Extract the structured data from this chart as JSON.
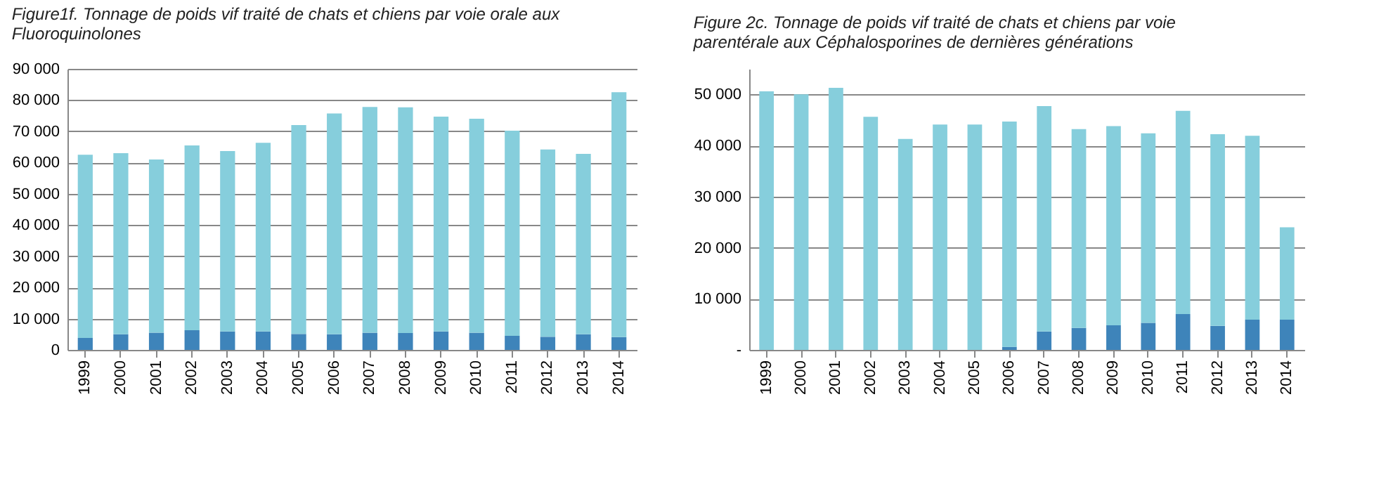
{
  "chart_data": [
    {
      "type": "bar",
      "stacked": true,
      "title": "Figure1f. Tonnage de poids vif traité de chats et chiens par voie orale aux Fluoroquinolones",
      "categories": [
        "1999",
        "2000",
        "2001",
        "2002",
        "2003",
        "2004",
        "2005",
        "2006",
        "2007",
        "2008",
        "2009",
        "2010",
        "2011",
        "2012",
        "2013",
        "2014"
      ],
      "series": [
        {
          "color": "#3e84ba",
          "values": [
            3800,
            5000,
            5500,
            6300,
            5900,
            5900,
            5100,
            5000,
            5500,
            5400,
            5900,
            5500,
            4500,
            4200,
            5000,
            4100
          ]
        },
        {
          "color": "#86cedc",
          "values": [
            58700,
            58000,
            55500,
            59200,
            57800,
            60400,
            66900,
            70700,
            72300,
            72300,
            68800,
            68500,
            65700,
            60000,
            57800,
            78400
          ]
        }
      ],
      "ylim": [
        0,
        90000
      ],
      "yticks": [
        0,
        {
          "value": 10000,
          "label": "10 000"
        },
        {
          "value": 20000,
          "label": "20 000"
        },
        {
          "value": 30000,
          "label": "30 000"
        },
        {
          "value": 40000,
          "label": "40 000"
        },
        {
          "value": 50000,
          "label": "50 000"
        },
        {
          "value": 60000,
          "label": "60 000"
        },
        {
          "value": 70000,
          "label": "70 000"
        },
        {
          "value": 80000,
          "label": "80 000"
        },
        {
          "value": 90000,
          "label": "90 000"
        }
      ],
      "grid": "y",
      "legend": false
    },
    {
      "type": "bar",
      "stacked": true,
      "title": "Figure 2c.  Tonnage de poids vif traité de chats et chiens par voie parentérale aux Céphalosporines de dernières générations",
      "categories": [
        "1999",
        "2000",
        "2001",
        "2002",
        "2003",
        "2004",
        "2005",
        "2006",
        "2007",
        "2008",
        "2009",
        "2010",
        "2011",
        "2012",
        "2013",
        "2014"
      ],
      "series": [
        {
          "color": "#3e84ba",
          "values": [
            0,
            0,
            0,
            0,
            0,
            0,
            0,
            600,
            3600,
            4300,
            4800,
            5300,
            7000,
            4700,
            5900,
            5900
          ]
        },
        {
          "color": "#86cedc",
          "values": [
            50600,
            50000,
            51300,
            45600,
            41300,
            44100,
            44100,
            44100,
            44100,
            38900,
            39000,
            37100,
            39800,
            37500,
            36000,
            18100
          ]
        }
      ],
      "ylim": [
        0,
        55000
      ],
      "yticks": [
        {
          "value": 0,
          "label": "-"
        },
        {
          "value": 10000,
          "label": "10 000"
        },
        {
          "value": 20000,
          "label": "20 000"
        },
        {
          "value": 30000,
          "label": "30 000"
        },
        {
          "value": 40000,
          "label": "40 000"
        },
        {
          "value": 50000,
          "label": "50 000"
        }
      ],
      "grid": "y",
      "legend": false
    }
  ]
}
